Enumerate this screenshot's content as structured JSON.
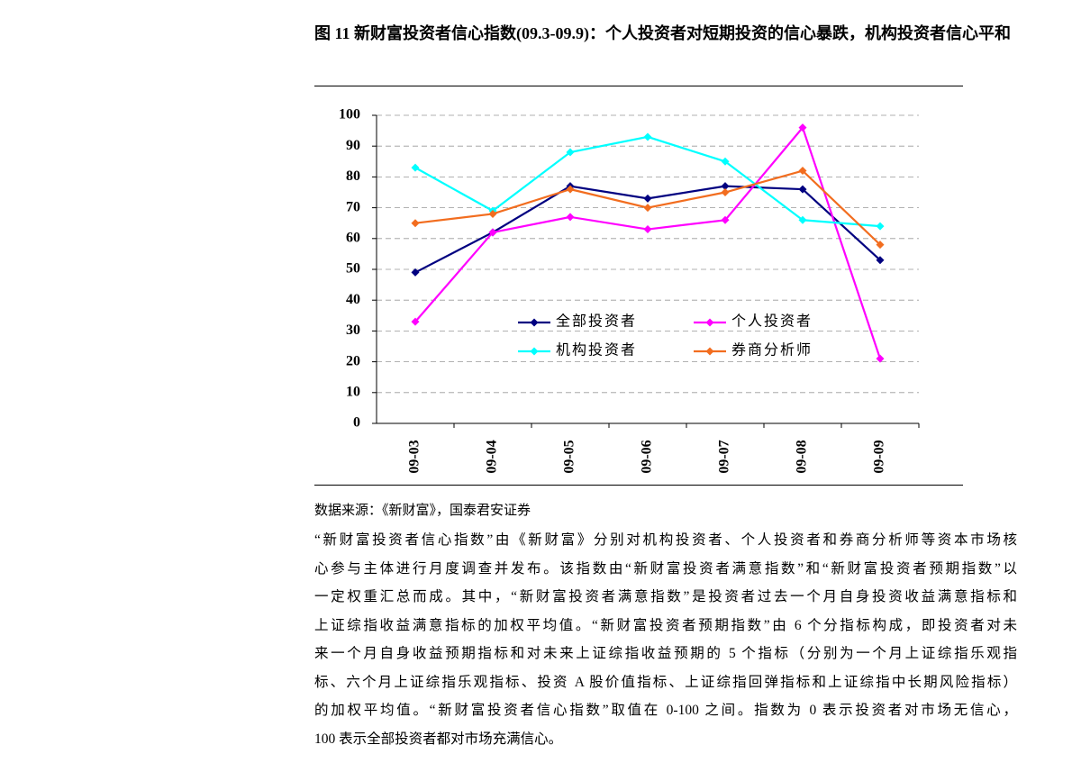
{
  "chart_data": {
    "type": "line",
    "title": "图 11 新财富投资者信心指数(09.3-09.9)：个人投资者对短期投资的信心暴跌，机构投资者信心平和",
    "categories": [
      "09-03",
      "09-04",
      "09-05",
      "09-06",
      "09-07",
      "09-08",
      "09-09"
    ],
    "series": [
      {
        "name": "全部投资者",
        "color": "#000080",
        "values": [
          49,
          62,
          77,
          73,
          77,
          76,
          53
        ]
      },
      {
        "name": "个人投资者",
        "color": "#ff00ff",
        "values": [
          33,
          62,
          67,
          63,
          66,
          96,
          21
        ]
      },
      {
        "name": "机构投资者",
        "color": "#00ffff",
        "values": [
          83,
          69,
          88,
          93,
          85,
          66,
          64
        ]
      },
      {
        "name": "券商分析师",
        "color": "#f26d1f",
        "values": [
          65,
          68,
          76,
          70,
          75,
          82,
          58
        ]
      }
    ],
    "ylim": [
      0,
      100
    ],
    "yticks": [
      0,
      10,
      20,
      30,
      40,
      50,
      60,
      70,
      80,
      90,
      100
    ],
    "grid": true,
    "legend": "center"
  },
  "source": "数据来源：《新财富》，国泰君安证券",
  "paragraph": [
    "“新财富投资者信心指数”由《新财富》分别对机构投资者、个人投资者和券商分析师等资本市场核",
    "心参与主体进行月度调查并发布。该指数由“新财富投资者满意指数”和“新财富投资者预期指数”以",
    "一定权重汇总而成。其中，“新财富投资者满意指数”是投资者过去一个月自身投资收益满意指标和",
    "上证综指收益满意指标的加权平均值。“新财富投资者预期指数”由 6 个分指标构成，即投资者对未",
    "来一个月自身收益预期指标和对未来上证综指收益预期的 5 个指标（分别为一个月上证综指乐观指",
    "标、六个月上证综指乐观指标、投资 A 股价值指标、上证综指回弹指标和上证综指中长期风险指标）",
    "的加权平均值。“新财富投资者信心指数”取值在 0-100 之间。指数为 0 表示投资者对市场无信心，",
    "100 表示全部投资者都对市场充满信心。"
  ]
}
